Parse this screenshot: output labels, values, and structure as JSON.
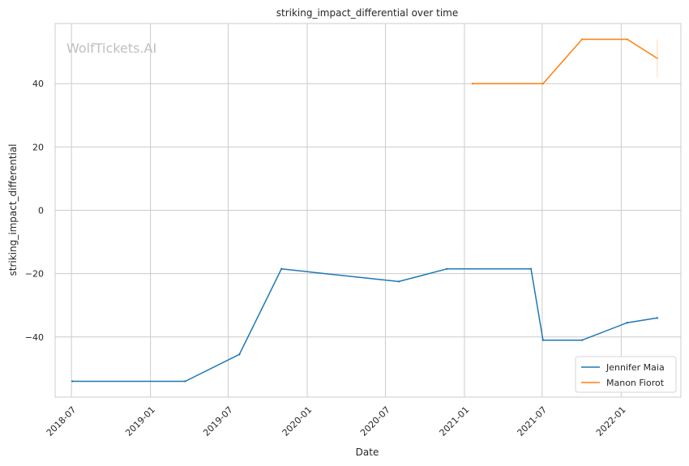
{
  "chart_data": {
    "type": "line",
    "title": "striking_impact_differential over time",
    "xlabel": "Date",
    "ylabel": "striking_impact_differential",
    "watermark": "WolfTickets.AI",
    "x_range": [
      "2018-05-24",
      "2022-05-20"
    ],
    "ylim": [
      -59,
      59
    ],
    "x_ticks": [
      "2018-07",
      "2019-01",
      "2019-07",
      "2020-01",
      "2020-07",
      "2021-01",
      "2021-07",
      "2022-01"
    ],
    "y_ticks": [
      -40,
      -20,
      0,
      20,
      40
    ],
    "y_tick_labels": [
      "−40",
      "−20",
      "0",
      "20",
      "40"
    ],
    "grid": true,
    "legend_position": "lower-right",
    "series": [
      {
        "name": "Jennifer Maia",
        "color": "#1f77b4",
        "points": [
          {
            "x": "2018-07-03",
            "y": -54
          },
          {
            "x": "2019-03-23",
            "y": -54
          },
          {
            "x": "2019-07-27",
            "y": -45.5
          },
          {
            "x": "2019-11-02",
            "y": -18.5
          },
          {
            "x": "2020-08-01",
            "y": -22.5
          },
          {
            "x": "2020-11-21",
            "y": -18.5
          },
          {
            "x": "2021-06-05",
            "y": -18.5
          },
          {
            "x": "2021-07-03",
            "y": -41
          },
          {
            "x": "2021-10-02",
            "y": -41
          },
          {
            "x": "2022-01-15",
            "y": -35.5
          },
          {
            "x": "2022-03-26",
            "y": -34
          }
        ]
      },
      {
        "name": "Manon Fiorot",
        "color": "#ff7f0e",
        "points": [
          {
            "x": "2021-01-20",
            "y": 40
          },
          {
            "x": "2021-07-03",
            "y": 40
          },
          {
            "x": "2021-10-02",
            "y": 54
          },
          {
            "x": "2022-01-15",
            "y": 54
          },
          {
            "x": "2022-03-26",
            "y": 48
          }
        ]
      }
    ]
  }
}
